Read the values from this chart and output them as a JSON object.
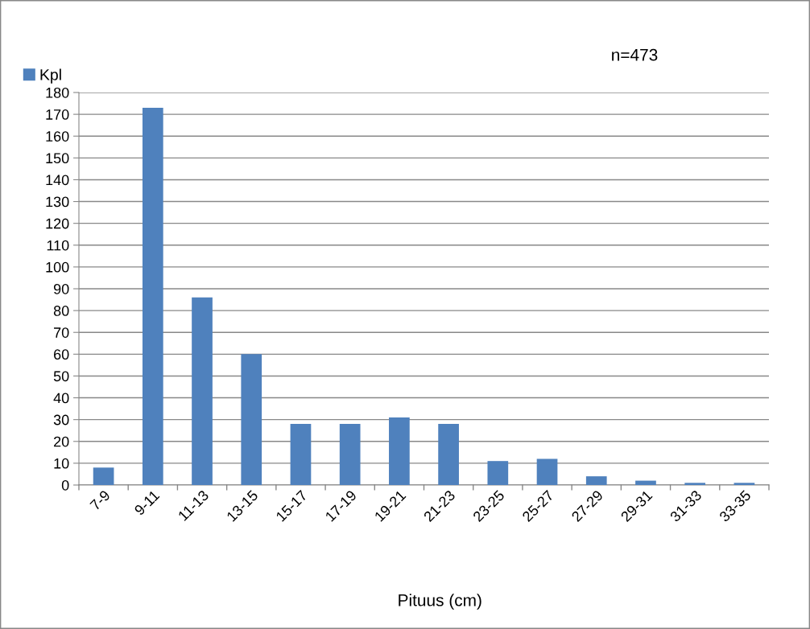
{
  "chart_data": {
    "type": "bar",
    "xlabel": "Pituus (cm)",
    "categories": [
      "7-9",
      "9-11",
      "11-13",
      "13-15",
      "15-17",
      "17-19",
      "19-21",
      "21-23",
      "23-25",
      "25-27",
      "27-29",
      "29-31",
      "31-33",
      "33-35"
    ],
    "series": [
      {
        "name": "Kpl",
        "color": "#4f81bd",
        "values": [
          8,
          173,
          86,
          60,
          28,
          28,
          31,
          28,
          11,
          12,
          4,
          2,
          1,
          1
        ]
      }
    ],
    "ylim": [
      0,
      180
    ],
    "yticks": [
      0,
      10,
      20,
      30,
      40,
      50,
      60,
      70,
      80,
      90,
      100,
      110,
      120,
      130,
      140,
      150,
      160,
      170,
      180
    ],
    "grid": "y",
    "legend": "top left",
    "annotations": [
      "n=473"
    ]
  }
}
